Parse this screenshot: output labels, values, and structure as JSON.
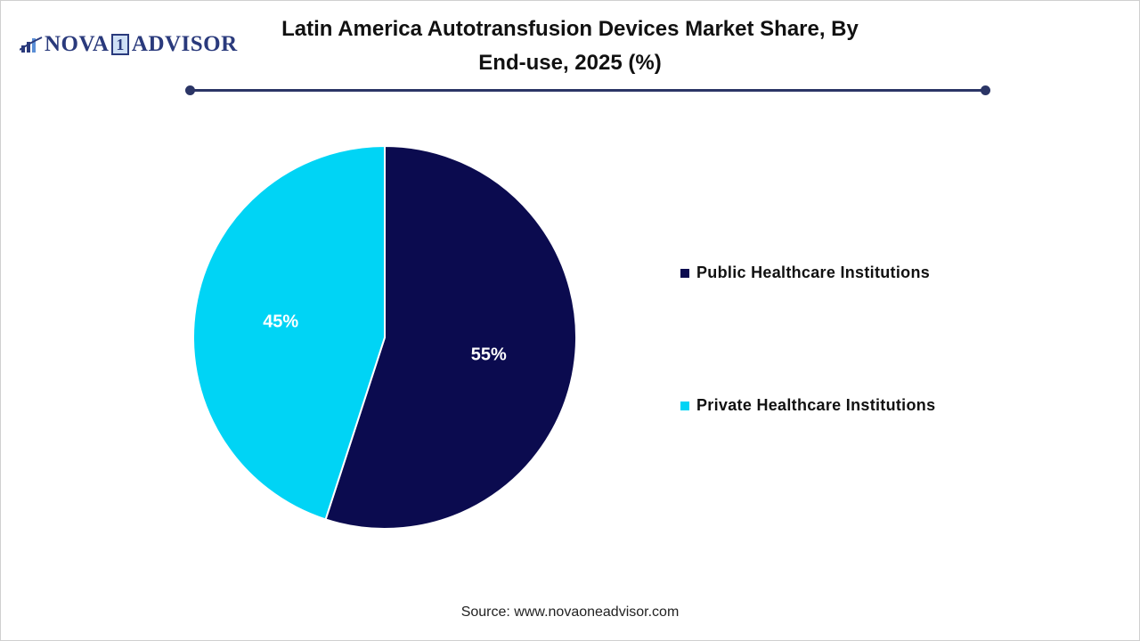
{
  "logo": {
    "text_left": "NOVA",
    "text_num": "1",
    "text_right": "ADVISOR"
  },
  "title": "Latin America Autotransfusion Devices Market Share, By End-use, 2025 (%)",
  "source": "Source: www.novaoneadvisor.com",
  "chart_data": {
    "type": "pie",
    "title": "Latin America Autotransfusion Devices Market Share, By End-use, 2025 (%)",
    "categories": [
      "Public Healthcare Institutions",
      "Private Healthcare Institutions"
    ],
    "values": [
      55,
      45
    ],
    "labels": [
      "55%",
      "45%"
    ],
    "colors": [
      "#0b0b4f",
      "#00d4f5"
    ],
    "legend_position": "right"
  }
}
